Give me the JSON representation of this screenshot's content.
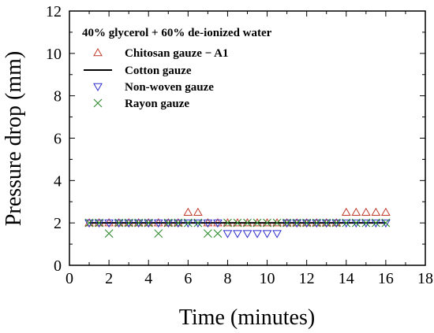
{
  "chart_data": {
    "type": "scatter",
    "xlabel": "Time (minutes)",
    "ylabel": "Pressure drop (mm)",
    "xlim": [
      0,
      18
    ],
    "ylim": [
      0,
      12
    ],
    "xticks": [
      "0",
      "2",
      "4",
      "6",
      "8",
      "10",
      "12",
      "14",
      "16",
      "18"
    ],
    "yticks": [
      "0",
      "2",
      "4",
      "6",
      "8",
      "10",
      "12"
    ],
    "legend_title": "40% glycerol + 60% de-ionized water",
    "legend_position": "top-left",
    "grid": false,
    "series": [
      {
        "name": "Chitosan gauze − A1",
        "marker": "triangle-up",
        "color": "#c0392b",
        "x": [
          1.0,
          1.5,
          2.0,
          2.5,
          3.0,
          3.5,
          4.0,
          4.5,
          5.0,
          5.5,
          6.0,
          6.5,
          7.0,
          7.5,
          8.0,
          8.5,
          9.0,
          9.5,
          10.0,
          10.5,
          11.0,
          11.5,
          12.0,
          12.5,
          13.0,
          13.5,
          14.0,
          14.5,
          15.0,
          15.5,
          16.0
        ],
        "y": [
          2,
          2,
          2,
          2,
          2,
          2,
          2,
          2,
          2,
          2,
          2.5,
          2.5,
          2,
          2,
          2,
          2,
          2,
          2,
          2,
          2,
          2,
          2,
          2,
          2,
          2,
          2,
          2.5,
          2.5,
          2.5,
          2.5,
          2.5
        ]
      },
      {
        "name": "Cotton gauze",
        "marker": "line",
        "color": "#000000",
        "x": [
          1.0,
          16.0
        ],
        "y": [
          2,
          2
        ]
      },
      {
        "name": "Non-woven gauze",
        "marker": "triangle-down",
        "color": "#2c2ccc",
        "x": [
          1.0,
          1.5,
          2.0,
          2.5,
          3.0,
          3.5,
          4.0,
          4.5,
          5.0,
          5.5,
          6.0,
          6.5,
          7.0,
          7.5,
          8.0,
          8.5,
          9.0,
          9.5,
          10.0,
          10.5,
          11.0,
          11.5,
          12.0,
          12.5,
          13.0,
          13.5,
          14.0,
          14.5,
          15.0,
          15.5,
          16.0
        ],
        "y": [
          2,
          2,
          2,
          2,
          2,
          2,
          2,
          2,
          2,
          2,
          2,
          2,
          2,
          2,
          1.5,
          1.5,
          1.5,
          1.5,
          1.5,
          1.5,
          2,
          2,
          2,
          2,
          2,
          2,
          2,
          2,
          2,
          2,
          2
        ]
      },
      {
        "name": "Rayon gauze",
        "marker": "x",
        "color": "#2e8b2e",
        "x": [
          1.0,
          1.5,
          2.0,
          2.5,
          3.0,
          3.5,
          4.0,
          4.5,
          5.0,
          5.5,
          6.0,
          6.5,
          7.0,
          7.5,
          8.0,
          8.5,
          9.0,
          9.5,
          10.0,
          10.5,
          11.0,
          11.5,
          12.0,
          12.5,
          13.0,
          13.5,
          14.0,
          14.5,
          15.0,
          15.5,
          16.0
        ],
        "y": [
          2,
          2,
          1.5,
          2,
          2,
          2,
          2,
          1.5,
          2,
          2,
          2,
          2,
          1.5,
          1.5,
          2,
          2,
          2,
          2,
          2,
          2,
          2,
          2,
          2,
          2,
          2,
          2,
          2,
          2,
          2,
          2,
          2
        ]
      }
    ]
  }
}
